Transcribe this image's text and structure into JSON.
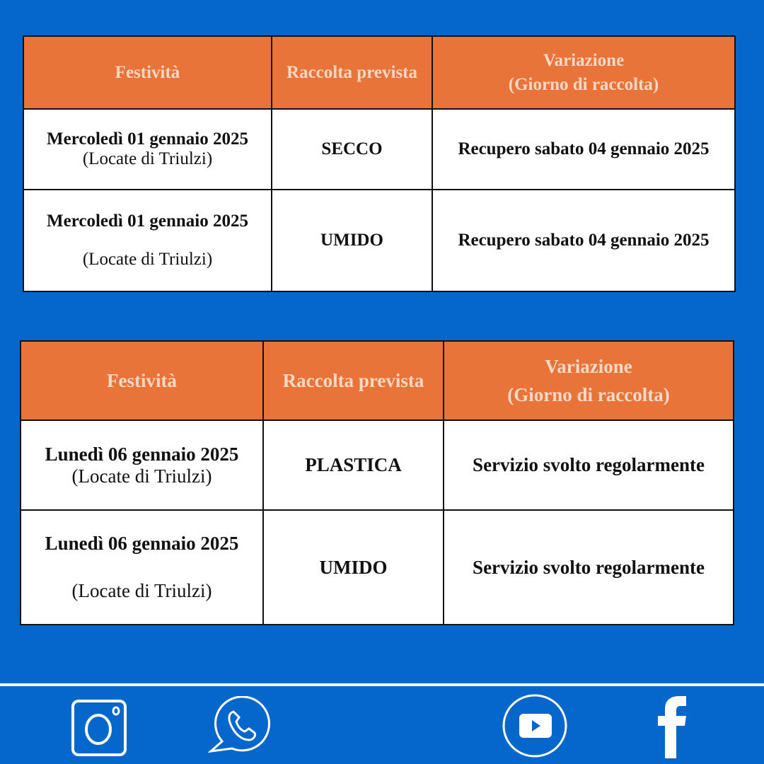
{
  "colors": {
    "background": "#0566cc",
    "header": "#e8743a",
    "header_text": "#f7d8c4"
  },
  "tables": [
    {
      "headers": [
        "Festività",
        "Raccolta prevista",
        "Variazione",
        "(Giorno di raccolta)"
      ],
      "rows": [
        {
          "date": "Mercoledì 01 gennaio 2025",
          "place": "(Locate di Triulzi)",
          "collection": "SECCO",
          "change": "Recupero sabato 04 gennaio 2025"
        },
        {
          "date": "Mercoledì 01 gennaio 2025",
          "place": "(Locate di Triulzi)",
          "collection": "UMIDO",
          "change": "Recupero sabato 04 gennaio 2025"
        }
      ]
    },
    {
      "headers": [
        "Festività",
        "Raccolta prevista",
        "Variazione",
        "(Giorno di raccolta)"
      ],
      "rows": [
        {
          "date": "Lunedì 06 gennaio 2025",
          "place": "(Locate di Triulzi)",
          "collection": "PLASTICA",
          "change": "Servizio svolto regolarmente"
        },
        {
          "date": "Lunedì 06 gennaio 2025",
          "place": "(Locate di Triulzi)",
          "collection": "UMIDO",
          "change": "Servizio svolto regolarmente"
        }
      ]
    }
  ],
  "social": [
    "instagram-icon",
    "whatsapp-icon",
    "youtube-icon",
    "facebook-icon"
  ]
}
